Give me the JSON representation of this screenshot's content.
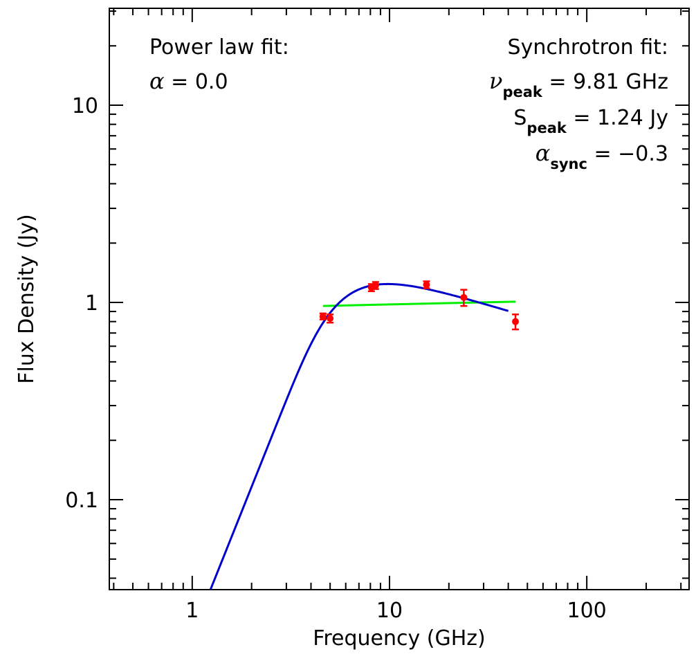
{
  "chart_data": {
    "type": "scatter",
    "title": "",
    "xlabel": "Frequency (GHz)",
    "ylabel": "Flux Density (Jy)",
    "xscale": "log",
    "yscale": "log",
    "xlim": [
      0.38,
      330
    ],
    "ylim": [
      0.035,
      31
    ],
    "grid": false,
    "x_ticks": [
      {
        "value": 1,
        "label": "1"
      },
      {
        "value": 10,
        "label": "10"
      },
      {
        "value": 100,
        "label": "100"
      }
    ],
    "y_ticks": [
      {
        "value": 0.1,
        "label": "0.1"
      },
      {
        "value": 1,
        "label": "1"
      },
      {
        "value": 10,
        "label": "10"
      }
    ],
    "series": [
      {
        "kind": "points",
        "color": "#ff0000",
        "points": [
          {
            "x": 4.6,
            "y": 0.85,
            "err": 0.03
          },
          {
            "x": 5.0,
            "y": 0.83,
            "err": 0.04
          },
          {
            "x": 8.1,
            "y": 1.19,
            "err": 0.05
          },
          {
            "x": 8.5,
            "y": 1.22,
            "err": 0.05
          },
          {
            "x": 15.4,
            "y": 1.23,
            "err": 0.05
          },
          {
            "x": 23.8,
            "y": 1.06,
            "err": 0.1
          },
          {
            "x": 43.5,
            "y": 0.8,
            "err": 0.07
          }
        ]
      },
      {
        "kind": "power-law-fit",
        "color": "#00ee00",
        "alpha": 0.0,
        "x_range": [
          4.6,
          43.5
        ],
        "y_range": [
          0.96,
          1.01
        ]
      },
      {
        "kind": "synchrotron-fit",
        "color": "#0000cc",
        "nu_peak": 9.81,
        "s_peak": 1.24,
        "alpha_sync": -0.3,
        "x_range": [
          1.0,
          40
        ]
      }
    ],
    "annotations": {
      "left_title": "Power law fit:",
      "left_line": {
        "symbol": "α",
        "text": " = 0.0"
      },
      "right_title": "Synchrotron fit:",
      "right_lines": [
        {
          "symbol": "ν",
          "sub": "peak",
          "text": " = 9.81 GHz"
        },
        {
          "symbol": "S",
          "sub": "peak",
          "text": " = 1.24 Jy"
        },
        {
          "symbol": "α",
          "sub": "sync",
          "text": " = −0.3"
        }
      ]
    }
  }
}
